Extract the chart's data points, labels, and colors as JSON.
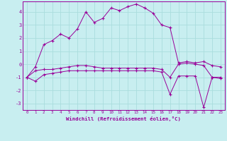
{
  "xlabel": "Windchill (Refroidissement éolien,°C)",
  "bg_color": "#c8eef0",
  "line_color": "#990099",
  "grid_color": "#aadddd",
  "x": [
    0,
    1,
    2,
    3,
    4,
    5,
    6,
    7,
    8,
    9,
    10,
    11,
    12,
    13,
    14,
    15,
    16,
    17,
    18,
    19,
    20,
    21,
    22,
    23
  ],
  "line1": [
    -1.0,
    -0.2,
    1.5,
    1.8,
    2.3,
    2.0,
    2.7,
    4.0,
    3.2,
    3.5,
    4.3,
    4.1,
    4.4,
    4.6,
    4.3,
    3.9,
    3.0,
    2.8,
    0.1,
    0.2,
    0.1,
    0.2,
    -0.1,
    -0.2
  ],
  "line2": [
    -1.0,
    -0.5,
    -0.4,
    -0.4,
    -0.3,
    -0.2,
    -0.1,
    -0.1,
    -0.2,
    -0.3,
    -0.3,
    -0.3,
    -0.3,
    -0.3,
    -0.3,
    -0.3,
    -0.4,
    -1.0,
    0.0,
    0.1,
    0.0,
    -0.1,
    -1.0,
    -1.0
  ],
  "line3": [
    -1.0,
    -1.3,
    -0.8,
    -0.7,
    -0.6,
    -0.5,
    -0.5,
    -0.5,
    -0.5,
    -0.5,
    -0.5,
    -0.5,
    -0.5,
    -0.5,
    -0.5,
    -0.5,
    -0.6,
    -2.3,
    -0.9,
    -0.9,
    -0.9,
    -3.3,
    -1.0,
    -1.1
  ],
  "ylim": [
    -3.5,
    4.8
  ],
  "xlim": [
    -0.5,
    23.5
  ],
  "yticks": [
    -3,
    -2,
    -1,
    0,
    1,
    2,
    3,
    4
  ],
  "xticks": [
    0,
    1,
    2,
    3,
    4,
    5,
    6,
    7,
    8,
    9,
    10,
    11,
    12,
    13,
    14,
    15,
    16,
    17,
    18,
    19,
    20,
    21,
    22,
    23
  ]
}
